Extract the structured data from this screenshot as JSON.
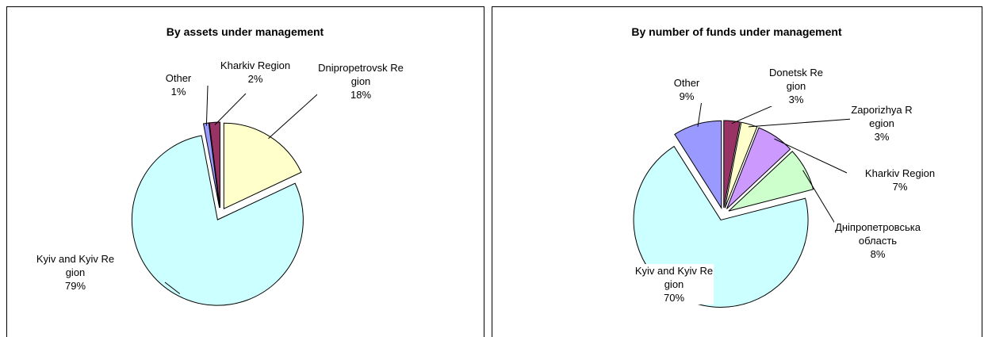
{
  "chart_data": [
    {
      "type": "pie",
      "title": "By assets under management",
      "categories": [
        "Dnipropetrovsk Region",
        "Kyiv and Kyiv Region",
        "Other",
        "Kharkiv Region"
      ],
      "values": [
        18,
        79,
        1,
        2
      ],
      "value_labels": [
        "18%",
        "79%",
        "1%",
        "2%"
      ],
      "colors": [
        "#ffffcc",
        "#ccffff",
        "#9999ff",
        "#993366"
      ]
    },
    {
      "type": "pie",
      "title": "By number of funds under management",
      "categories": [
        "Donetsk Region",
        "Zaporizhya Region",
        "Kharkiv Region",
        "Дніпропетровська область",
        "Kyiv and Kyiv Region",
        "Other"
      ],
      "values": [
        3,
        3,
        7,
        8,
        70,
        9
      ],
      "value_labels": [
        "3%",
        "3%",
        "7%",
        "8%",
        "70%",
        "9%"
      ],
      "colors": [
        "#993366",
        "#ffffcc",
        "#cc99ff",
        "#ccffcc",
        "#ccffff",
        "#9999ff"
      ]
    }
  ]
}
